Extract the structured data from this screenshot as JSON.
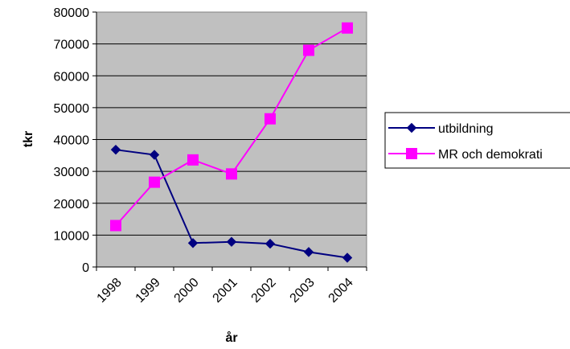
{
  "chart_data": {
    "type": "line",
    "categories": [
      "1998",
      "1999",
      "2000",
      "2001",
      "2002",
      "2003",
      "2004"
    ],
    "series": [
      {
        "name": "utbildning",
        "values": [
          36800,
          35200,
          7500,
          7900,
          7300,
          4700,
          2900
        ],
        "color": "#000080",
        "marker": "diamond"
      },
      {
        "name": "MR och demokrati",
        "values": [
          13000,
          26600,
          33600,
          29200,
          46500,
          68000,
          75000
        ],
        "color": "#FF00FF",
        "marker": "square"
      }
    ],
    "title": "",
    "xlabel": "år",
    "ylabel": "tkr",
    "ylim": [
      0,
      80000
    ],
    "yticks": [
      "0",
      "10000",
      "20000",
      "30000",
      "40000",
      "50000",
      "60000",
      "70000",
      "80000"
    ],
    "grid": true,
    "plot_background": "#C0C0C0",
    "legend_position": "right"
  }
}
